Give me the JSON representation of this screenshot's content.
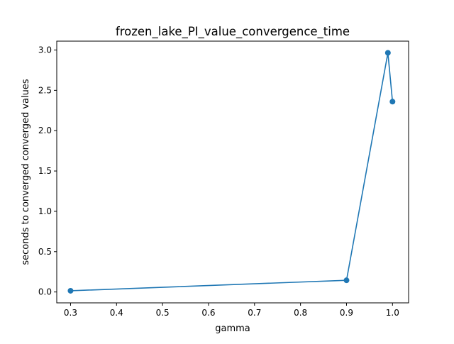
{
  "chart_data": {
    "type": "line",
    "title": "frozen_lake_PI_value_convergence_time",
    "xlabel": "gamma",
    "ylabel": "seconds to converged converged values",
    "xlim": [
      0.27,
      1.035
    ],
    "ylim": [
      -0.135,
      3.11
    ],
    "x_ticks": [
      0.3,
      0.4,
      0.5,
      0.6,
      0.7,
      0.8,
      0.9,
      1.0
    ],
    "x_tick_labels": [
      "0.3",
      "0.4",
      "0.5",
      "0.6",
      "0.7",
      "0.8",
      "0.9",
      "1.0"
    ],
    "y_ticks": [
      0.0,
      0.5,
      1.0,
      1.5,
      2.0,
      2.5,
      3.0
    ],
    "y_tick_labels": [
      "0.0",
      "0.5",
      "1.0",
      "1.5",
      "2.0",
      "2.5",
      "3.0"
    ],
    "grid": false,
    "series": [
      {
        "color": "#1f77b4",
        "marker": "circle",
        "x": [
          0.3,
          0.9,
          0.99,
          1.0
        ],
        "y": [
          0.015,
          0.145,
          2.965,
          2.36
        ]
      }
    ]
  }
}
